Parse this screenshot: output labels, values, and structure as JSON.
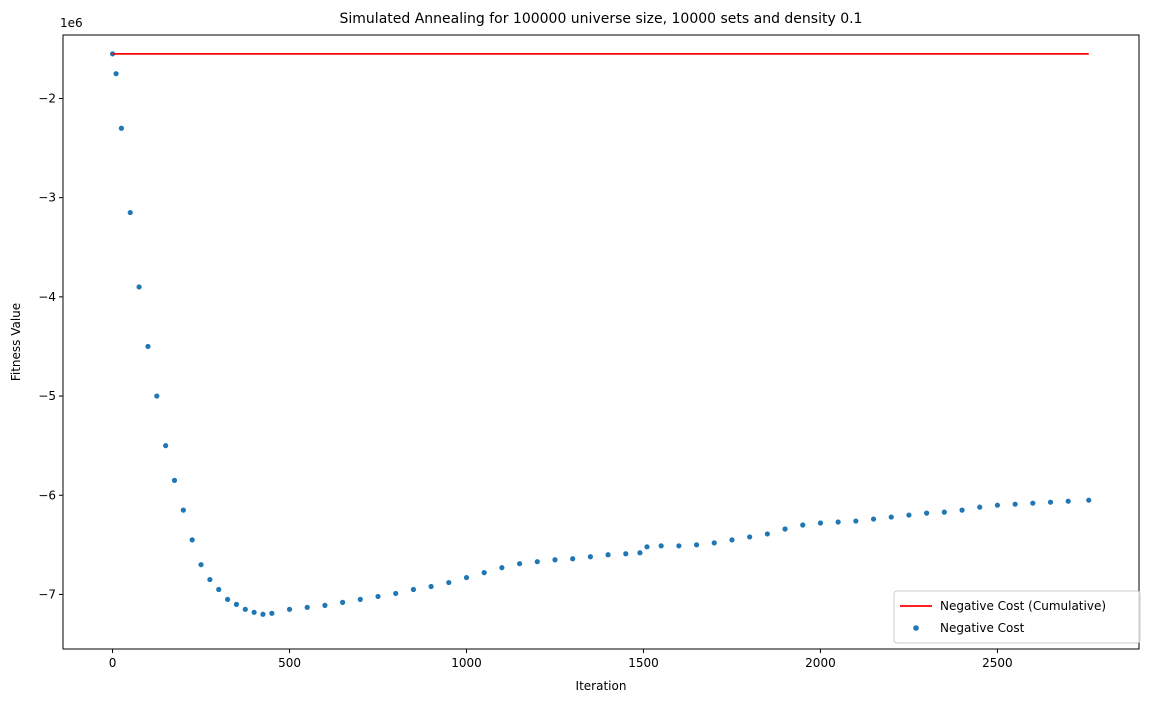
{
  "chart_data": {
    "type": "scatter",
    "title": "Simulated Annealing for 100000 universe size, 10000 sets and density 0.1",
    "xlabel": "Iteration",
    "ylabel": "Fitness Value",
    "y_offset_label": "1e6",
    "y_scale": 1000000,
    "xlim": [
      -140,
      2900
    ],
    "ylim": [
      -7550000,
      -1360000
    ],
    "x_ticks": [
      0,
      500,
      1000,
      1500,
      2000,
      2500
    ],
    "x_tick_labels": [
      "0",
      "500",
      "1000",
      "1500",
      "2000",
      "2500"
    ],
    "y_ticks": [
      -2000000,
      -3000000,
      -4000000,
      -5000000,
      -6000000,
      -7000000
    ],
    "y_tick_labels": [
      "−2",
      "−3",
      "−4",
      "−5",
      "−6",
      "−7"
    ],
    "grid": false,
    "legend_position": "lower-right",
    "series": [
      {
        "name": "Negative Cost (Cumulative)",
        "kind": "line",
        "color": "#ff0000",
        "x": [
          0,
          2758
        ],
        "y": [
          -1550000,
          -1550000
        ]
      },
      {
        "name": "Negative Cost",
        "kind": "scatter",
        "color": "#1f77b4",
        "x": [
          0,
          10,
          25,
          50,
          75,
          100,
          125,
          150,
          175,
          200,
          225,
          250,
          275,
          300,
          325,
          350,
          375,
          400,
          425,
          450,
          500,
          550,
          600,
          650,
          700,
          750,
          800,
          850,
          900,
          950,
          1000,
          1050,
          1100,
          1150,
          1200,
          1250,
          1300,
          1350,
          1400,
          1450,
          1490,
          1510,
          1550,
          1600,
          1650,
          1700,
          1750,
          1800,
          1850,
          1900,
          1950,
          2000,
          2050,
          2100,
          2150,
          2200,
          2250,
          2300,
          2350,
          2400,
          2450,
          2500,
          2550,
          2600,
          2650,
          2700,
          2758
        ],
        "y": [
          -1550000,
          -1750000,
          -2300000,
          -3150000,
          -3900000,
          -4500000,
          -5000000,
          -5500000,
          -5850000,
          -6150000,
          -6450000,
          -6700000,
          -6850000,
          -6950000,
          -7050000,
          -7100000,
          -7150000,
          -7180000,
          -7200000,
          -7190000,
          -7150000,
          -7130000,
          -7110000,
          -7080000,
          -7050000,
          -7020000,
          -6990000,
          -6950000,
          -6920000,
          -6880000,
          -6830000,
          -6780000,
          -6730000,
          -6690000,
          -6670000,
          -6650000,
          -6640000,
          -6620000,
          -6600000,
          -6590000,
          -6580000,
          -6520000,
          -6510000,
          -6510000,
          -6500000,
          -6480000,
          -6450000,
          -6420000,
          -6390000,
          -6340000,
          -6300000,
          -6280000,
          -6270000,
          -6260000,
          -6240000,
          -6220000,
          -6200000,
          -6180000,
          -6170000,
          -6150000,
          -6120000,
          -6100000,
          -6090000,
          -6080000,
          -6070000,
          -6060000,
          -6050000
        ]
      }
    ]
  }
}
